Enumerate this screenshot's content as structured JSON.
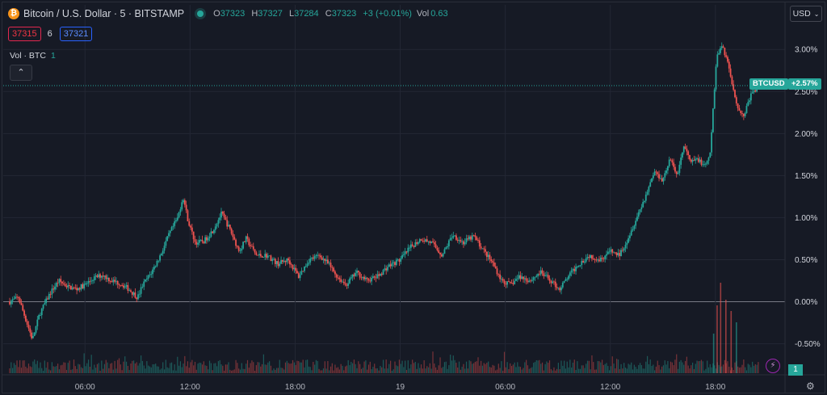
{
  "header": {
    "logo": "₿",
    "symbol_title": "Bitcoin / U.S. Dollar · 5 · BITSTAMP",
    "ohlc": {
      "o_label": "O",
      "o": "37323",
      "h_label": "H",
      "h": "37327",
      "l_label": "L",
      "l": "37284",
      "c_label": "C",
      "c": "37323",
      "change": "+3 (+0.01%)"
    },
    "vol_label": "Vol",
    "vol_value": "0.63"
  },
  "price_row": {
    "bid": "37315",
    "spread": "6",
    "ask": "37321"
  },
  "volume_legend": {
    "label": "Vol · BTC",
    "value": "1",
    "collapse_icon": "⌃"
  },
  "currency_button": {
    "label": "USD",
    "chevron": "⌄"
  },
  "price_tags": {
    "symbol": "BTCUSD",
    "pct": "+2.57%",
    "vol_value": "1"
  },
  "icons": {
    "bolt": "⚡",
    "gear": "⚙"
  },
  "colors": {
    "background": "#161a25",
    "grid": "#232734",
    "up": "#26a69a",
    "down": "#ef5350",
    "accent_blue": "#2962ff"
  },
  "chart_data": {
    "type": "candlestick",
    "y_scale": "percent",
    "ylim": [
      -0.85,
      3.3
    ],
    "y_ticks": [
      "3.00%",
      "2.50%",
      "2.00%",
      "1.50%",
      "1.00%",
      "0.50%",
      "0.00%",
      "-0.50%"
    ],
    "y_tick_values": [
      3.0,
      2.5,
      2.0,
      1.5,
      1.0,
      0.5,
      0.0,
      -0.5
    ],
    "x_ticks": [
      "06:00",
      "12:00",
      "18:00",
      "19",
      "06:00",
      "12:00",
      "18:00"
    ],
    "x_tick_times_hours": [
      6,
      12,
      18,
      24,
      30,
      36,
      42
    ],
    "time_range_hours": [
      1.7,
      44.5
    ],
    "current_level_pct": 2.57,
    "price_path": [
      [
        1.7,
        0.0
      ],
      [
        2.2,
        0.05
      ],
      [
        2.6,
        -0.2
      ],
      [
        3.0,
        -0.45
      ],
      [
        3.4,
        -0.15
      ],
      [
        4.0,
        0.1
      ],
      [
        4.5,
        0.25
      ],
      [
        5.0,
        0.18
      ],
      [
        5.5,
        0.15
      ],
      [
        6.0,
        0.2
      ],
      [
        6.5,
        0.28
      ],
      [
        7.0,
        0.32
      ],
      [
        7.5,
        0.25
      ],
      [
        8.0,
        0.22
      ],
      [
        8.5,
        0.15
      ],
      [
        9.0,
        0.05
      ],
      [
        9.3,
        0.2
      ],
      [
        9.8,
        0.35
      ],
      [
        10.3,
        0.55
      ],
      [
        10.8,
        0.8
      ],
      [
        11.3,
        1.0
      ],
      [
        11.6,
        1.25
      ],
      [
        11.9,
        0.95
      ],
      [
        12.3,
        0.7
      ],
      [
        12.8,
        0.72
      ],
      [
        13.3,
        0.85
      ],
      [
        13.8,
        1.05
      ],
      [
        14.3,
        0.85
      ],
      [
        14.8,
        0.6
      ],
      [
        15.2,
        0.75
      ],
      [
        15.8,
        0.55
      ],
      [
        16.4,
        0.55
      ],
      [
        17.0,
        0.45
      ],
      [
        17.6,
        0.5
      ],
      [
        18.2,
        0.3
      ],
      [
        18.8,
        0.5
      ],
      [
        19.4,
        0.55
      ],
      [
        19.9,
        0.45
      ],
      [
        20.4,
        0.3
      ],
      [
        20.9,
        0.2
      ],
      [
        21.5,
        0.35
      ],
      [
        22.1,
        0.25
      ],
      [
        22.7,
        0.3
      ],
      [
        23.3,
        0.42
      ],
      [
        24.0,
        0.5
      ],
      [
        24.6,
        0.65
      ],
      [
        25.2,
        0.75
      ],
      [
        25.8,
        0.7
      ],
      [
        26.4,
        0.55
      ],
      [
        27.0,
        0.8
      ],
      [
        27.6,
        0.7
      ],
      [
        28.2,
        0.78
      ],
      [
        28.8,
        0.6
      ],
      [
        29.3,
        0.45
      ],
      [
        29.8,
        0.25
      ],
      [
        30.3,
        0.2
      ],
      [
        30.8,
        0.3
      ],
      [
        31.4,
        0.25
      ],
      [
        32.0,
        0.35
      ],
      [
        32.6,
        0.25
      ],
      [
        33.1,
        0.15
      ],
      [
        33.6,
        0.3
      ],
      [
        34.2,
        0.45
      ],
      [
        34.8,
        0.55
      ],
      [
        35.4,
        0.5
      ],
      [
        36.0,
        0.6
      ],
      [
        36.5,
        0.55
      ],
      [
        37.0,
        0.75
      ],
      [
        37.5,
        1.0
      ],
      [
        38.0,
        1.25
      ],
      [
        38.5,
        1.55
      ],
      [
        39.0,
        1.45
      ],
      [
        39.4,
        1.7
      ],
      [
        39.8,
        1.5
      ],
      [
        40.2,
        1.85
      ],
      [
        40.6,
        1.65
      ],
      [
        41.0,
        1.7
      ],
      [
        41.4,
        1.6
      ],
      [
        41.7,
        1.75
      ],
      [
        41.9,
        2.4
      ],
      [
        42.1,
        2.95
      ],
      [
        42.4,
        3.05
      ],
      [
        42.7,
        2.85
      ],
      [
        43.0,
        2.55
      ],
      [
        43.3,
        2.3
      ],
      [
        43.6,
        2.2
      ],
      [
        44.0,
        2.45
      ],
      [
        44.5,
        2.57
      ]
    ],
    "volume_spikes": [
      [
        41.9,
        0.35
      ],
      [
        42.1,
        0.6
      ],
      [
        42.3,
        0.8
      ],
      [
        42.6,
        0.65
      ],
      [
        42.9,
        0.55
      ],
      [
        43.2,
        0.45
      ]
    ]
  }
}
